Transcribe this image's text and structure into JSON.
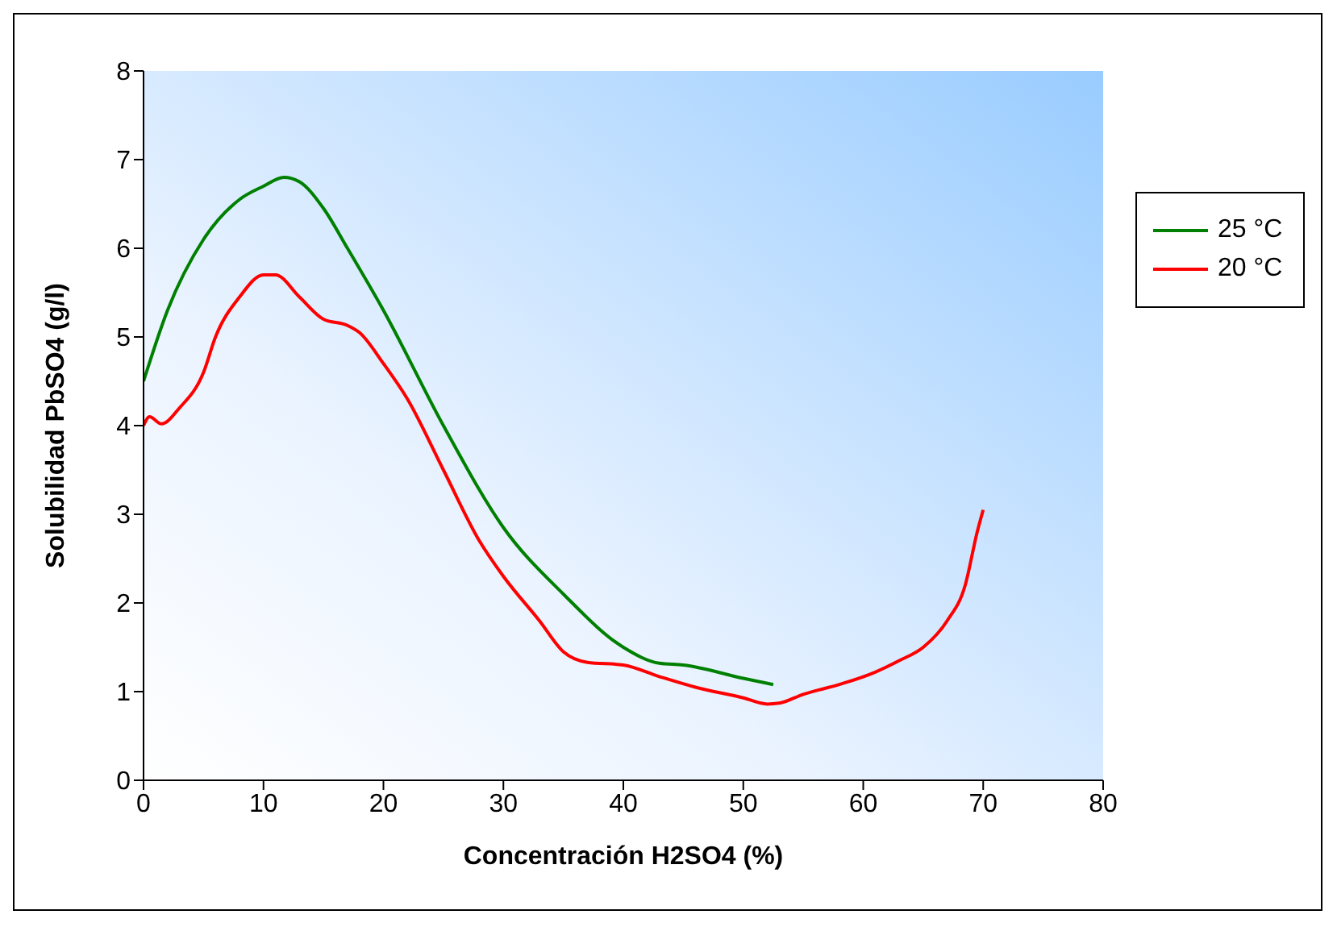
{
  "chart_data": {
    "type": "line",
    "xlabel": "Concentración H2SO4 (%)",
    "ylabel": "Solubilidad PbSO4 (g/l)",
    "xlim": [
      0,
      80
    ],
    "xticks": [
      0,
      10,
      20,
      30,
      40,
      50,
      60,
      70,
      80
    ],
    "ylim": [
      0,
      8
    ],
    "yticks": [
      0,
      1,
      2,
      3,
      4,
      5,
      6,
      7,
      8
    ],
    "grid": false,
    "legend": "right",
    "marker": "none",
    "line_style": "solid",
    "series": [
      {
        "name": "25 °C",
        "color": "#008000",
        "x": [
          0,
          2,
          5,
          8,
          10,
          11.7,
          13,
          15,
          17,
          20,
          25,
          30,
          35,
          40,
          43,
          45,
          50,
          52.5
        ],
        "values": [
          4.5,
          5.3,
          6.1,
          6.55,
          6.7,
          6.8,
          6.75,
          6.45,
          6.0,
          5.3,
          4.0,
          2.85,
          2.1,
          1.5,
          1.32,
          1.3,
          1.15,
          1.08
        ]
      },
      {
        "name": "20 °C",
        "color": "#ff0000",
        "x": [
          0,
          0.5,
          1.5,
          3,
          5,
          6,
          8,
          10,
          11,
          13,
          15,
          17,
          18,
          20,
          22,
          25,
          28,
          30,
          33,
          35,
          37,
          40,
          43,
          46,
          50,
          52,
          53,
          55,
          58,
          61,
          63,
          65,
          67,
          68.5,
          69.5,
          70
        ],
        "values": [
          4.0,
          4.1,
          4.02,
          4.2,
          4.6,
          5.0,
          5.45,
          5.7,
          5.7,
          5.45,
          5.2,
          5.13,
          5.05,
          4.7,
          4.3,
          3.5,
          2.7,
          2.3,
          1.8,
          1.45,
          1.33,
          1.3,
          1.17,
          1.05,
          0.93,
          0.86,
          0.87,
          0.97,
          1.08,
          1.22,
          1.35,
          1.5,
          1.8,
          2.2,
          2.8,
          3.05
        ]
      }
    ]
  }
}
